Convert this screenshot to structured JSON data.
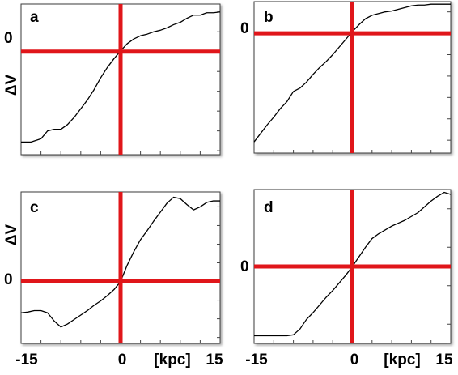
{
  "figure": {
    "x_axis_label": "[kpc]",
    "y_axis_label": "ΔV",
    "x_tick_labels": [
      "-15",
      "0",
      "15"
    ],
    "zero_label": "0",
    "axis_line_color": "#e0161a",
    "curve_color": "#000000"
  },
  "chart_data": [
    {
      "type": "line",
      "panel": "a",
      "xlim": [
        -15,
        15
      ],
      "x_ticks": [
        -15,
        0,
        15
      ],
      "y_ticks_labeled": [
        0
      ],
      "grid": false,
      "series": [
        {
          "x": [
            -15,
            -13.5,
            -12,
            -11,
            -10,
            -9,
            -8,
            -7,
            -6,
            -5,
            -4,
            -3,
            -2,
            -1,
            0,
            1,
            2,
            3,
            4,
            5,
            6,
            7,
            8,
            9,
            10,
            11,
            12,
            13,
            14,
            15
          ],
          "y": [
            -1.14,
            -1.14,
            -1.1,
            -1.0,
            -0.98,
            -0.98,
            -0.92,
            -0.83,
            -0.72,
            -0.61,
            -0.48,
            -0.33,
            -0.2,
            -0.09,
            0.01,
            0.1,
            0.16,
            0.2,
            0.22,
            0.25,
            0.27,
            0.3,
            0.34,
            0.37,
            0.42,
            0.46,
            0.46,
            0.49,
            0.49,
            0.5
          ]
        }
      ]
    },
    {
      "type": "line",
      "panel": "b",
      "xlim": [
        -15,
        15
      ],
      "x_ticks": [
        -15,
        0,
        15
      ],
      "y_ticks_labeled": [
        0
      ],
      "grid": false,
      "series": [
        {
          "x": [
            -15,
            -14,
            -13,
            -12,
            -11,
            -10,
            -9,
            -8,
            -7,
            -6,
            -5,
            -4,
            -3,
            -2,
            -1,
            0,
            1,
            2,
            3,
            4,
            5,
            6,
            7,
            8,
            9,
            10,
            11,
            12,
            13,
            14,
            15
          ],
          "y": [
            -1.27,
            -1.17,
            -1.07,
            -0.98,
            -0.88,
            -0.8,
            -0.68,
            -0.64,
            -0.57,
            -0.48,
            -0.4,
            -0.33,
            -0.25,
            -0.16,
            -0.07,
            0.02,
            0.1,
            0.17,
            0.21,
            0.23,
            0.25,
            0.26,
            0.28,
            0.3,
            0.32,
            0.33,
            0.33,
            0.34,
            0.34,
            0.34,
            0.34
          ]
        }
      ]
    },
    {
      "type": "line",
      "panel": "c",
      "xlim": [
        -15,
        15
      ],
      "x_ticks": [
        -15,
        0,
        15
      ],
      "y_ticks_labeled": [
        0
      ],
      "grid": false,
      "series": [
        {
          "x": [
            -15,
            -14,
            -13,
            -12,
            -11,
            -10,
            -9,
            -8,
            -7,
            -6,
            -5,
            -4,
            -3,
            -2,
            -1,
            0,
            1,
            2,
            3,
            4,
            5,
            6,
            7,
            8,
            9,
            10,
            11,
            12,
            13,
            14,
            15
          ],
          "y": [
            -0.42,
            -0.41,
            -0.39,
            -0.39,
            -0.42,
            -0.53,
            -0.61,
            -0.57,
            -0.51,
            -0.45,
            -0.39,
            -0.32,
            -0.26,
            -0.19,
            -0.11,
            0.0,
            0.22,
            0.4,
            0.56,
            0.68,
            0.81,
            0.93,
            1.05,
            1.13,
            1.11,
            1.03,
            0.96,
            1.0,
            1.06,
            1.08,
            1.08
          ]
        }
      ]
    },
    {
      "type": "line",
      "panel": "d",
      "xlim": [
        -15,
        15
      ],
      "x_ticks": [
        -15,
        0,
        15
      ],
      "y_ticks_labeled": [
        0
      ],
      "grid": false,
      "series": [
        {
          "x": [
            -15,
            -13,
            -11,
            -10,
            -9,
            -8,
            -7,
            -6,
            -5,
            -4,
            -3,
            -2,
            -1,
            0,
            1,
            2,
            3,
            4,
            5,
            6,
            7,
            8,
            9,
            10,
            11,
            12,
            13,
            14,
            15
          ],
          "y": [
            -0.72,
            -0.72,
            -0.72,
            -0.72,
            -0.71,
            -0.65,
            -0.55,
            -0.48,
            -0.4,
            -0.32,
            -0.25,
            -0.17,
            -0.09,
            0.0,
            0.1,
            0.2,
            0.29,
            0.34,
            0.38,
            0.42,
            0.45,
            0.48,
            0.52,
            0.56,
            0.62,
            0.68,
            0.73,
            0.77,
            0.75
          ]
        }
      ]
    }
  ]
}
